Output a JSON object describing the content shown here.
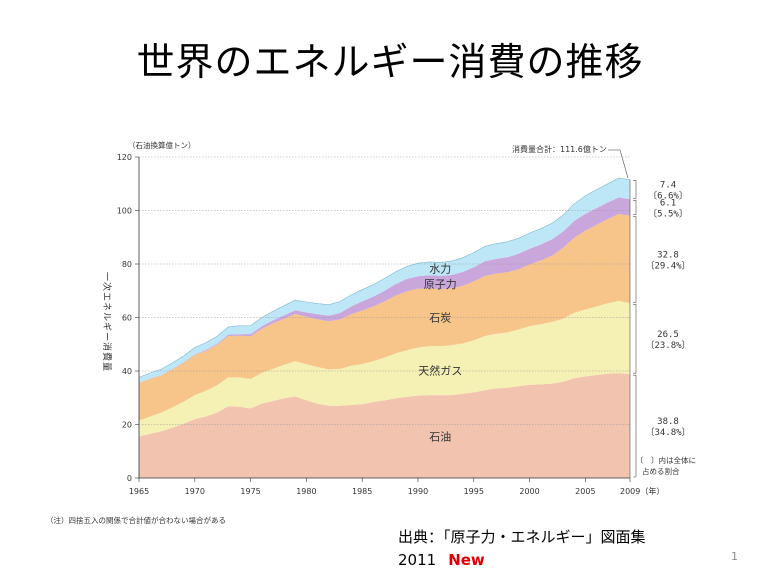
{
  "slide": {
    "title": "世界のエネルギー消費の推移",
    "source_line1": "出典：「原子力・エネルギー」図面集",
    "source_year": "2011",
    "source_new": "New",
    "page_number": "1"
  },
  "chart_data": {
    "type": "area",
    "title": "",
    "ylabel": "一次エネルギー消費量",
    "unit_label": "（石油換算億トン）",
    "xlim": [
      1965,
      2009
    ],
    "ylim": [
      0,
      120
    ],
    "yticks": [
      0,
      20,
      40,
      60,
      80,
      100,
      120
    ],
    "xticks": [
      "1965",
      "1970",
      "1975",
      "1980",
      "1985",
      "1990",
      "1995",
      "2000",
      "2005",
      "2009（年）"
    ],
    "xtick_values": [
      1965,
      1970,
      1975,
      1980,
      1985,
      1990,
      1995,
      2000,
      2005,
      2009
    ],
    "grid": "horizontal dotted",
    "x": [
      1965,
      1966,
      1967,
      1968,
      1969,
      1970,
      1971,
      1972,
      1973,
      1974,
      1975,
      1976,
      1977,
      1978,
      1979,
      1980,
      1981,
      1982,
      1983,
      1984,
      1985,
      1986,
      1987,
      1988,
      1989,
      1990,
      1991,
      1992,
      1993,
      1994,
      1995,
      1996,
      1997,
      1998,
      1999,
      2000,
      2001,
      2002,
      2003,
      2004,
      2005,
      2006,
      2007,
      2008,
      2009
    ],
    "series": [
      {
        "name": "石油",
        "color": "#f2c4b0",
        "values": [
          15.5,
          16.5,
          17.5,
          18.8,
          20.3,
          22.0,
          23.0,
          24.5,
          26.8,
          26.6,
          26.0,
          27.8,
          28.8,
          29.8,
          30.5,
          29.0,
          27.8,
          27.0,
          27.0,
          27.3,
          27.6,
          28.4,
          29.0,
          29.8,
          30.3,
          30.8,
          31.0,
          31.0,
          31.0,
          31.5,
          32.0,
          32.8,
          33.5,
          33.7,
          34.3,
          34.8,
          35.0,
          35.3,
          36.0,
          37.3,
          38.0,
          38.5,
          39.0,
          39.2,
          38.8
        ]
      },
      {
        "name": "天然ガス",
        "color": "#f5f0b4",
        "values": [
          6.0,
          6.5,
          7.0,
          7.6,
          8.2,
          9.0,
          9.6,
          10.2,
          10.8,
          11.0,
          11.0,
          11.5,
          12.0,
          12.5,
          13.2,
          13.5,
          13.7,
          13.6,
          13.8,
          14.6,
          15.0,
          15.3,
          16.0,
          16.8,
          17.5,
          18.0,
          18.3,
          18.3,
          18.6,
          18.8,
          19.5,
          20.3,
          20.4,
          20.7,
          21.2,
          22.0,
          22.5,
          23.0,
          23.5,
          24.5,
          25.0,
          25.6,
          26.3,
          27.0,
          26.5
        ]
      },
      {
        "name": "石炭",
        "color": "#f7c48a",
        "values": [
          14.0,
          14.1,
          13.9,
          14.2,
          14.5,
          15.0,
          15.0,
          15.1,
          15.5,
          15.6,
          16.0,
          16.5,
          17.0,
          17.2,
          17.6,
          17.8,
          17.8,
          18.0,
          18.5,
          19.3,
          20.0,
          20.4,
          21.0,
          21.6,
          22.0,
          22.0,
          21.6,
          21.3,
          21.3,
          21.5,
          22.0,
          22.4,
          22.5,
          22.5,
          22.5,
          23.0,
          23.8,
          24.8,
          26.5,
          28.0,
          29.5,
          30.5,
          31.5,
          32.5,
          32.8
        ]
      },
      {
        "name": "原子力",
        "color": "#c9a6dc",
        "values": [
          0.1,
          0.1,
          0.1,
          0.2,
          0.2,
          0.2,
          0.3,
          0.4,
          0.5,
          0.6,
          0.8,
          0.9,
          1.1,
          1.3,
          1.4,
          1.6,
          1.9,
          2.1,
          2.4,
          2.9,
          3.4,
          3.7,
          4.0,
          4.3,
          4.6,
          4.6,
          4.9,
          5.0,
          5.0,
          5.2,
          5.3,
          5.5,
          5.5,
          5.6,
          5.8,
          5.9,
          6.0,
          6.1,
          6.1,
          6.3,
          6.3,
          6.3,
          6.2,
          6.2,
          6.1
        ]
      },
      {
        "name": "水力",
        "color": "#bde7f7",
        "values": [
          2.0,
          2.1,
          2.2,
          2.3,
          2.4,
          2.6,
          2.7,
          2.8,
          2.9,
          3.1,
          3.2,
          3.3,
          3.4,
          3.6,
          3.8,
          3.9,
          4.0,
          4.1,
          4.2,
          4.3,
          4.4,
          4.5,
          4.6,
          4.6,
          4.7,
          4.9,
          5.0,
          5.0,
          5.2,
          5.3,
          5.5,
          5.6,
          5.7,
          5.8,
          5.8,
          5.9,
          5.9,
          6.0,
          6.1,
          6.4,
          6.7,
          6.9,
          7.0,
          7.2,
          7.4
        ]
      }
    ],
    "total_annotation": "消費量合計：111.6億トン",
    "right_labels": [
      {
        "series": "水力",
        "value": "7.4",
        "share": "〔6.6%〕"
      },
      {
        "series": "原子力",
        "value": "6.1",
        "share": "〔5.5%〕"
      },
      {
        "series": "石炭",
        "value": "32.8",
        "share": "〔29.4%〕"
      },
      {
        "series": "天然ガス",
        "value": "26.5",
        "share": "〔23.8%〕"
      },
      {
        "series": "石油",
        "value": "38.8",
        "share": "〔34.8%〕"
      }
    ],
    "legend_note_1": "〔　〕内は全体に",
    "legend_note_2": "占める割合",
    "footnote": "（注）四捨五入の関係で合計値が合わない場合がある"
  }
}
